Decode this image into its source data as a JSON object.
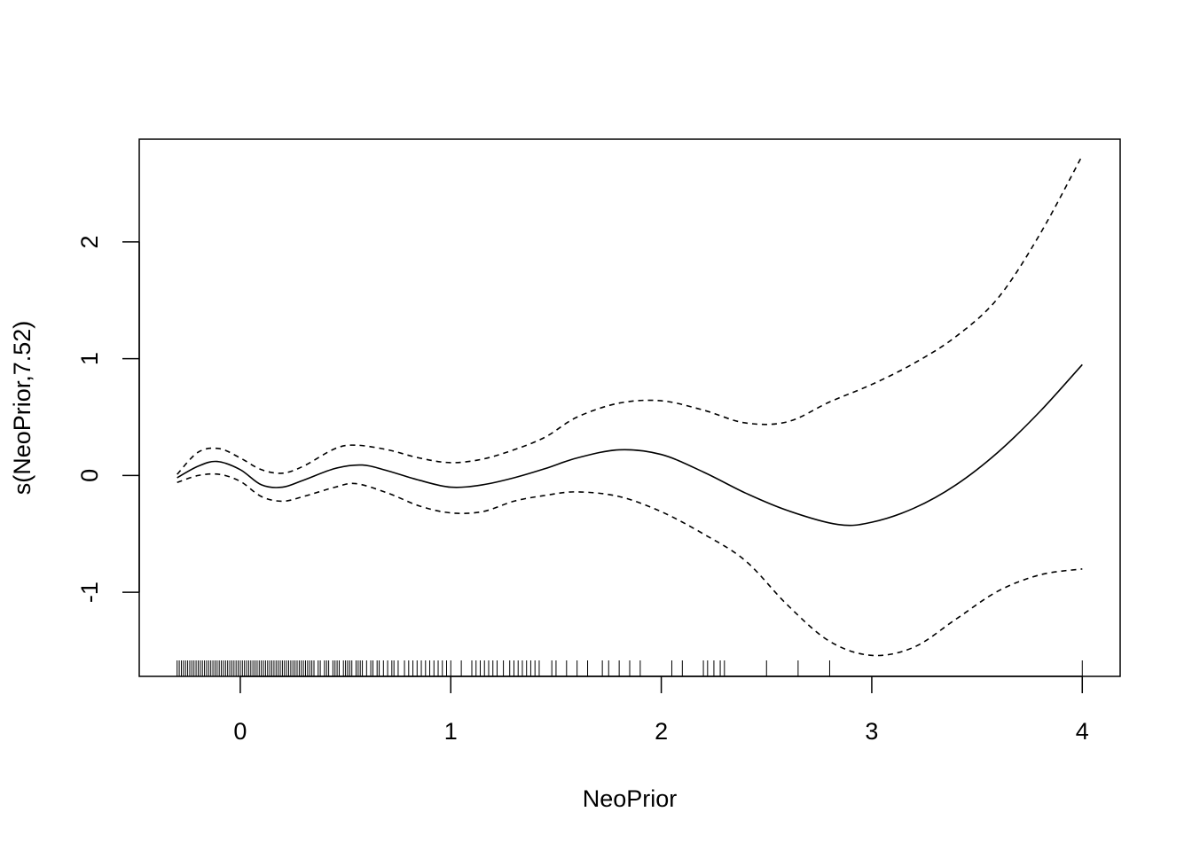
{
  "chart_data": {
    "type": "line",
    "title": "",
    "xlabel": "NeoPrior",
    "ylabel": "s(NeoPrior,7.52)",
    "xlim": [
      -0.48,
      4.18
    ],
    "ylim": [
      -1.72,
      2.88
    ],
    "xticks": [
      0,
      1,
      2,
      3,
      4
    ],
    "yticks": [
      -1,
      0,
      1,
      2
    ],
    "grid": false,
    "legend": "none",
    "series": [
      {
        "style": "solid",
        "x": [
          -0.3,
          -0.2,
          -0.11,
          0.0,
          0.1,
          0.2,
          0.3,
          0.45,
          0.58,
          0.7,
          0.85,
          1.0,
          1.15,
          1.3,
          1.45,
          1.6,
          1.8,
          2.0,
          2.2,
          2.4,
          2.6,
          2.84,
          3.0,
          3.2,
          3.4,
          3.6,
          3.8,
          4.0
        ],
        "y": [
          -0.02,
          0.08,
          0.12,
          0.05,
          -0.08,
          -0.1,
          -0.04,
          0.06,
          0.09,
          0.04,
          -0.04,
          -0.1,
          -0.08,
          -0.02,
          0.06,
          0.15,
          0.22,
          0.18,
          0.03,
          -0.15,
          -0.3,
          -0.42,
          -0.4,
          -0.28,
          -0.08,
          0.2,
          0.55,
          0.95
        ]
      },
      {
        "style": "dashed",
        "x": [
          -0.3,
          -0.2,
          -0.1,
          0.0,
          0.1,
          0.2,
          0.3,
          0.45,
          0.55,
          0.7,
          0.85,
          1.0,
          1.15,
          1.3,
          1.45,
          1.6,
          1.8,
          2.0,
          2.2,
          2.4,
          2.6,
          2.8,
          3.0,
          3.2,
          3.4,
          3.6,
          3.8,
          4.0
        ],
        "y": [
          0.01,
          0.2,
          0.23,
          0.15,
          0.05,
          0.02,
          0.08,
          0.23,
          0.26,
          0.22,
          0.15,
          0.11,
          0.14,
          0.22,
          0.33,
          0.5,
          0.62,
          0.64,
          0.56,
          0.45,
          0.46,
          0.63,
          0.78,
          0.96,
          1.19,
          1.52,
          2.07,
          2.74
        ]
      },
      {
        "style": "dashed",
        "x": [
          -0.3,
          -0.2,
          -0.1,
          0.0,
          0.1,
          0.2,
          0.3,
          0.45,
          0.55,
          0.7,
          0.85,
          1.0,
          1.15,
          1.3,
          1.45,
          1.6,
          1.8,
          2.0,
          2.2,
          2.4,
          2.6,
          2.8,
          3.0,
          3.2,
          3.4,
          3.6,
          3.8,
          4.0
        ],
        "y": [
          -0.06,
          0.0,
          0.01,
          -0.05,
          -0.18,
          -0.22,
          -0.18,
          -0.1,
          -0.07,
          -0.15,
          -0.26,
          -0.32,
          -0.31,
          -0.22,
          -0.17,
          -0.14,
          -0.18,
          -0.31,
          -0.5,
          -0.73,
          -1.11,
          -1.42,
          -1.54,
          -1.47,
          -1.23,
          -0.99,
          -0.85,
          -0.8
        ]
      }
    ],
    "rug": [
      -0.3,
      -0.29,
      -0.28,
      -0.27,
      -0.26,
      -0.25,
      -0.24,
      -0.23,
      -0.22,
      -0.21,
      -0.2,
      -0.19,
      -0.18,
      -0.17,
      -0.16,
      -0.15,
      -0.14,
      -0.13,
      -0.12,
      -0.11,
      -0.1,
      -0.09,
      -0.08,
      -0.07,
      -0.06,
      -0.05,
      -0.04,
      -0.03,
      -0.02,
      -0.01,
      0.0,
      0.01,
      0.02,
      0.03,
      0.04,
      0.05,
      0.06,
      0.07,
      0.08,
      0.09,
      0.1,
      0.11,
      0.12,
      0.13,
      0.14,
      0.15,
      0.16,
      0.17,
      0.18,
      0.19,
      0.2,
      0.21,
      0.22,
      0.23,
      0.24,
      0.25,
      0.26,
      0.27,
      0.28,
      0.29,
      0.3,
      0.31,
      0.32,
      0.33,
      0.34,
      0.35,
      0.37,
      0.38,
      0.4,
      0.41,
      0.42,
      0.44,
      0.45,
      0.46,
      0.47,
      0.49,
      0.5,
      0.51,
      0.52,
      0.53,
      0.55,
      0.56,
      0.57,
      0.58,
      0.6,
      0.62,
      0.63,
      0.65,
      0.66,
      0.68,
      0.7,
      0.72,
      0.73,
      0.75,
      0.78,
      0.8,
      0.82,
      0.84,
      0.86,
      0.88,
      0.9,
      0.92,
      0.94,
      0.96,
      0.98,
      1.0,
      1.05,
      1.1,
      1.12,
      1.14,
      1.16,
      1.18,
      1.2,
      1.22,
      1.25,
      1.28,
      1.3,
      1.32,
      1.34,
      1.36,
      1.38,
      1.4,
      1.42,
      1.48,
      1.5,
      1.55,
      1.6,
      1.65,
      1.72,
      1.75,
      1.8,
      1.85,
      1.9,
      2.05,
      2.1,
      2.2,
      2.22,
      2.25,
      2.28,
      2.3,
      2.5,
      2.65,
      2.8,
      4.0
    ]
  }
}
